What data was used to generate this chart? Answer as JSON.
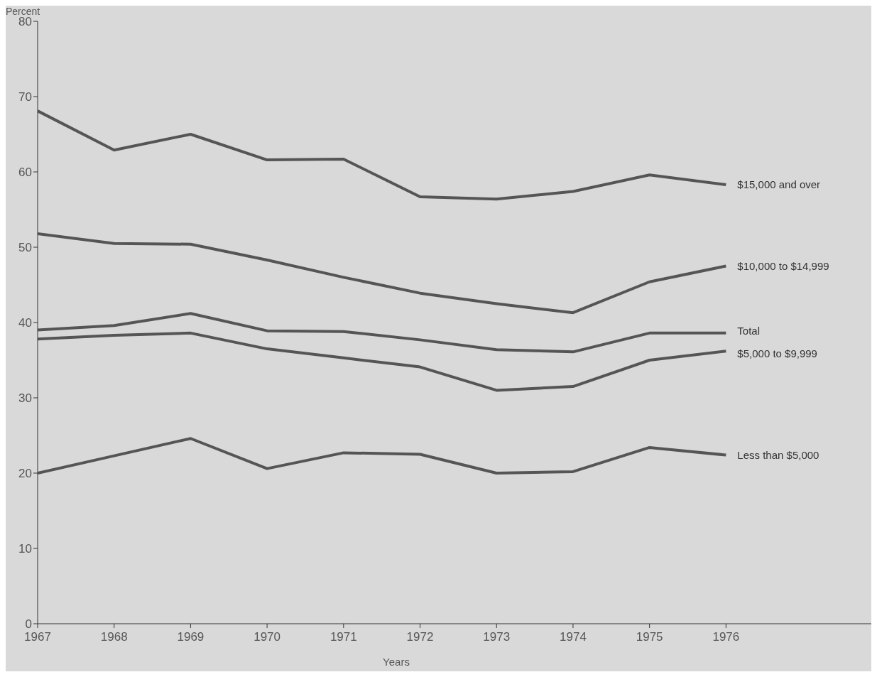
{
  "chart_data": {
    "type": "line",
    "ylabel": "Percent",
    "xlabel": "Years",
    "x": [
      1967,
      1968,
      1969,
      1970,
      1971,
      1972,
      1973,
      1974,
      1975,
      1976
    ],
    "xlim": [
      1967,
      1977.9
    ],
    "xticks": [
      1967,
      1968,
      1969,
      1970,
      1971,
      1972,
      1973,
      1974,
      1975,
      1976
    ],
    "ylim": [
      0,
      80
    ],
    "yticks": [
      0,
      10,
      20,
      30,
      40,
      50,
      60,
      70,
      80
    ],
    "grid": false,
    "marker": "none",
    "line_style": "solid",
    "series": [
      {
        "name": "$15,000 and over",
        "color": "#555555",
        "values": [
          68.1,
          62.9,
          65.0,
          61.6,
          61.7,
          56.7,
          56.4,
          57.4,
          59.6,
          58.3
        ]
      },
      {
        "name": "$10,000 to $14,999",
        "color": "#555555",
        "values": [
          51.8,
          50.5,
          50.4,
          48.3,
          46.0,
          43.9,
          42.5,
          41.3,
          45.4,
          47.5
        ]
      },
      {
        "name": "Total",
        "color": "#555555",
        "values": [
          39.0,
          39.6,
          41.2,
          38.9,
          38.8,
          37.7,
          36.4,
          36.1,
          38.6,
          38.6
        ]
      },
      {
        "name": "$5,000 to $9,999",
        "color": "#555555",
        "values": [
          37.8,
          38.3,
          38.6,
          36.5,
          35.3,
          34.1,
          31.0,
          31.5,
          35.0,
          36.2
        ]
      },
      {
        "name": "Less than $5,000",
        "color": "#555555",
        "values": [
          20.0,
          22.3,
          24.6,
          20.6,
          22.7,
          22.5,
          20.0,
          20.2,
          23.4,
          22.4
        ]
      }
    ]
  }
}
